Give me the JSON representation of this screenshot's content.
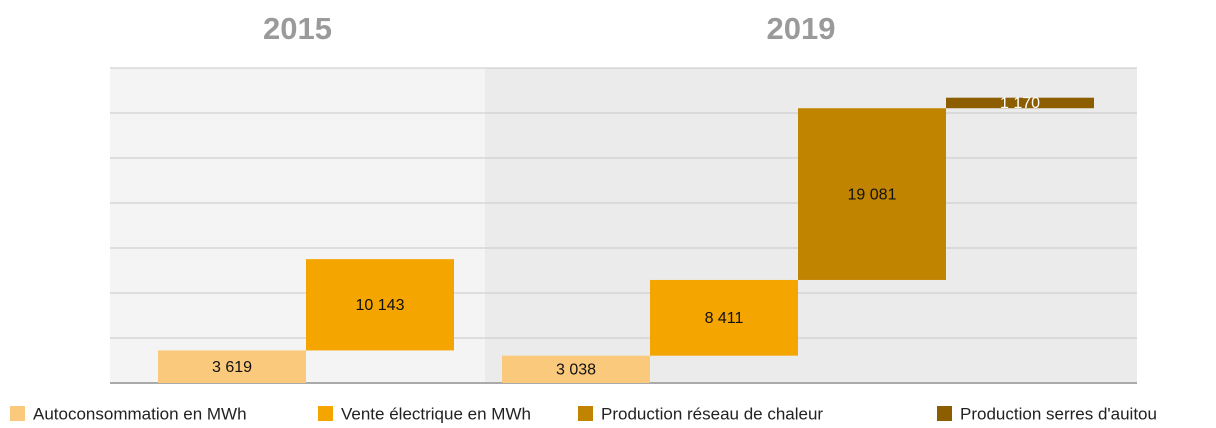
{
  "chart_data": {
    "type": "waterfall",
    "categories": [
      "2015",
      "2019"
    ],
    "series": [
      {
        "name": "Autoconsommation en MWh",
        "color": "#fbc97c",
        "values": [
          3619,
          3038
        ],
        "value_labels": [
          "3 619",
          "3 038"
        ]
      },
      {
        "name": "Vente électrique en MWh",
        "color": "#f5a500",
        "values": [
          10143,
          8411
        ],
        "value_labels": [
          "10 143",
          "8 411"
        ]
      },
      {
        "name": "Production réseau de chaleur",
        "color": "#c08400",
        "values": [
          null,
          19081
        ],
        "value_labels": [
          null,
          "19 081"
        ]
      },
      {
        "name": "Production serres d'auitou",
        "color": "#8c5e00",
        "values": [
          null,
          1170
        ],
        "value_labels": [
          null,
          "1 170"
        ]
      }
    ],
    "ylim": [
      0,
      35000
    ],
    "yticks": [
      0,
      5000,
      10000,
      15000,
      20000,
      25000,
      30000,
      35000
    ],
    "grid": true
  }
}
